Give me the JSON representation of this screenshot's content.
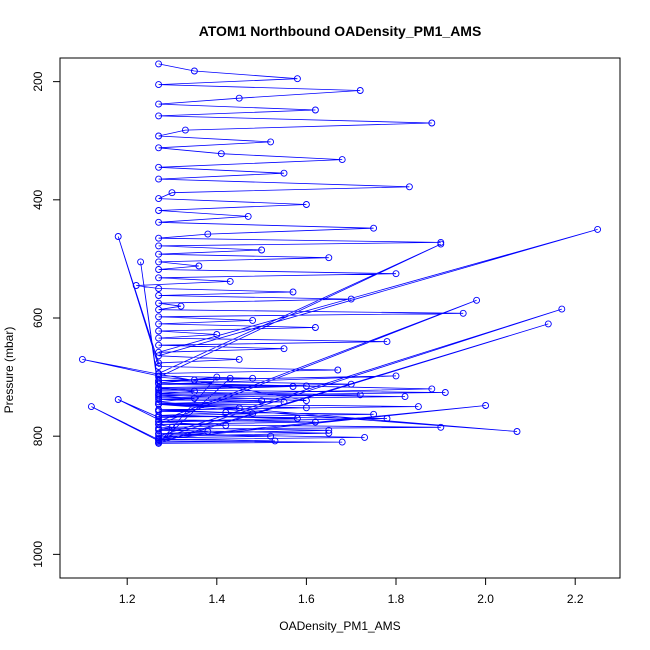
{
  "chart_data": {
    "type": "line",
    "title": "ATOM1 Northbound OADensity_PM1_AMS",
    "xlabel": "OADensity_PM1_AMS",
    "ylabel": "Pressure (mbar)",
    "xlim": [
      1.05,
      2.3
    ],
    "ylim": [
      1040,
      160
    ],
    "y_reversed": true,
    "x_ticks": [
      1.2,
      1.4,
      1.6,
      1.8,
      2.0,
      2.2
    ],
    "x_tick_labels": [
      "1.2",
      "1.4",
      "1.6",
      "1.8",
      "2.0",
      "2.2"
    ],
    "y_ticks": [
      200,
      400,
      600,
      800,
      1000
    ],
    "y_tick_labels": [
      "200",
      "400",
      "600",
      "800",
      "1000"
    ],
    "grid": false,
    "legend": "none",
    "colors": {
      "series": "#0000ff",
      "axes": "#000000",
      "background": "#ffffff"
    },
    "series": [
      {
        "marker": "open-circle",
        "x": [
          1.27,
          1.35,
          1.58,
          1.27,
          1.72,
          1.45,
          1.27,
          1.62,
          1.27,
          1.88,
          1.33,
          1.27,
          1.52,
          1.27,
          1.41,
          1.68,
          1.27,
          1.55,
          1.27,
          1.83,
          1.3,
          1.27,
          1.6,
          1.27,
          1.47,
          1.27,
          1.75,
          1.38,
          1.27,
          1.9,
          1.27,
          1.5,
          1.27,
          1.65,
          1.27,
          1.36,
          1.27,
          1.8,
          1.27,
          1.43,
          1.22,
          1.27,
          1.57,
          1.27,
          1.7,
          1.27,
          1.32,
          1.27,
          1.95,
          1.27,
          1.48,
          1.27,
          1.62,
          1.27,
          1.4,
          1.27,
          1.78,
          1.27,
          1.55,
          1.27,
          2.25,
          1.27,
          1.45,
          1.27,
          1.18,
          1.27,
          1.67,
          1.27,
          1.9,
          1.27,
          1.35,
          1.27,
          1.6,
          1.27,
          1.23,
          1.27,
          1.72,
          1.27,
          1.5,
          1.27,
          1.85,
          1.27,
          1.42,
          1.27,
          1.58,
          1.27,
          1.98,
          1.27,
          1.3,
          1.27,
          1.65,
          1.27,
          2.17,
          1.27,
          1.53,
          1.27,
          2.14,
          1.27,
          1.4,
          1.27,
          1.88,
          1.27,
          1.6,
          1.27,
          1.1,
          1.27,
          1.48,
          1.27,
          1.7,
          1.27,
          1.35,
          1.27,
          1.82,
          1.27,
          1.55,
          1.27,
          1.45,
          1.27,
          1.75,
          1.27,
          1.18,
          1.27,
          1.62,
          1.27,
          1.9,
          1.27,
          1.38,
          1.27,
          1.52,
          1.27,
          2.0,
          1.27,
          1.12,
          1.27,
          1.68,
          1.27,
          1.43,
          1.27,
          1.8,
          1.27,
          1.57,
          1.27,
          1.91,
          1.27,
          1.35,
          1.27,
          2.07,
          1.27,
          1.6,
          1.27,
          1.48,
          1.27,
          1.78,
          1.27,
          1.42,
          1.27,
          1.65,
          1.27,
          1.73,
          1.27
        ],
        "y": [
          170,
          182,
          195,
          205,
          215,
          228,
          238,
          248,
          258,
          270,
          282,
          292,
          302,
          312,
          322,
          332,
          345,
          355,
          365,
          378,
          388,
          398,
          408,
          418,
          428,
          438,
          448,
          458,
          465,
          472,
          478,
          485,
          492,
          498,
          505,
          512,
          518,
          525,
          532,
          538,
          545,
          550,
          556,
          562,
          568,
          575,
          580,
          586,
          592,
          598,
          604,
          610,
          616,
          622,
          628,
          634,
          640,
          646,
          652,
          658,
          450,
          664,
          670,
          676,
          462,
          682,
          688,
          694,
          475,
          700,
          705,
          710,
          715,
          720,
          505,
          725,
          730,
          735,
          740,
          745,
          750,
          755,
          760,
          765,
          770,
          775,
          570,
          780,
          785,
          790,
          795,
          800,
          585,
          805,
          808,
          810,
          610,
          812,
          700,
          710,
          720,
          730,
          740,
          695,
          670,
          698,
          702,
          706,
          712,
          718,
          724,
          728,
          733,
          738,
          742,
          746,
          752,
          758,
          763,
          768,
          738,
          772,
          776,
          780,
          785,
          788,
          792,
          796,
          800,
          803,
          748,
          806,
          750,
          808,
          810,
          812,
          702,
          706,
          698,
          712,
          716,
          722,
          726,
          732,
          736,
          742,
          792,
          746,
          752,
          756,
          762,
          766,
          770,
          776,
          782,
          786,
          790,
          796,
          802,
          806
        ]
      }
    ]
  }
}
